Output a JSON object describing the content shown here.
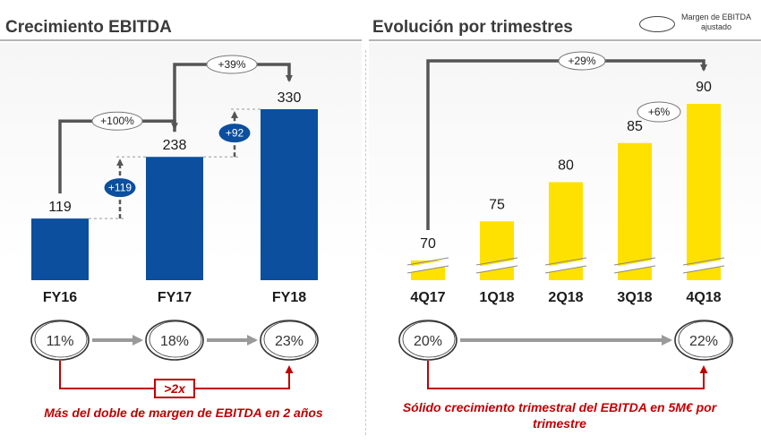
{
  "left_title": "Crecimiento EBITDA",
  "right_title": "Evolución por trimestres",
  "legend": {
    "label_line1": "Margen de EBITDA",
    "label_line2": "ajustado"
  },
  "colors": {
    "annual_bar": "#0b4f9e",
    "quarter_bar": "#ffe100",
    "accent_red": "#c00000",
    "connector": "#555555",
    "margin_arrow": "#9a9a9a"
  },
  "chart_data": [
    {
      "type": "bar",
      "title": "Crecimiento EBITDA",
      "categories": [
        "FY16",
        "FY17",
        "FY18"
      ],
      "values": [
        119,
        238,
        330
      ],
      "value_labels": [
        "119",
        "238",
        "330"
      ],
      "increments": [
        {
          "label": "+119",
          "from": "FY16",
          "to": "FY17"
        },
        {
          "label": "+92",
          "from": "FY17",
          "to": "FY18"
        }
      ],
      "growth_labels": [
        {
          "label": "+100%",
          "from": "FY16",
          "to": "FY17"
        },
        {
          "label": "+39%",
          "from": "FY17",
          "to": "FY18"
        }
      ],
      "margins": [
        "11%",
        "18%",
        "23%"
      ],
      "margin_multiplier": ">2x",
      "ylim": [
        0,
        360
      ]
    },
    {
      "type": "bar",
      "title": "Evolución por trimestres",
      "categories": [
        "4Q17",
        "1Q18",
        "2Q18",
        "3Q18",
        "4Q18"
      ],
      "values": [
        70,
        75,
        80,
        85,
        90
      ],
      "value_labels": [
        "70",
        "75",
        "80",
        "85",
        "90"
      ],
      "axis_break": true,
      "growth_labels": [
        {
          "label": "+29%",
          "from": "4Q17",
          "to": "4Q18"
        },
        {
          "label": "+6%",
          "from": "3Q18",
          "to": "4Q18"
        }
      ],
      "margins": [
        "20%",
        "22%"
      ]
    }
  ],
  "footnotes": {
    "left": "Más del doble de margen de EBITDA  en 2 años",
    "right": "Sólido crecimiento trimestral del EBITDA en 5M€ por trimestre"
  }
}
